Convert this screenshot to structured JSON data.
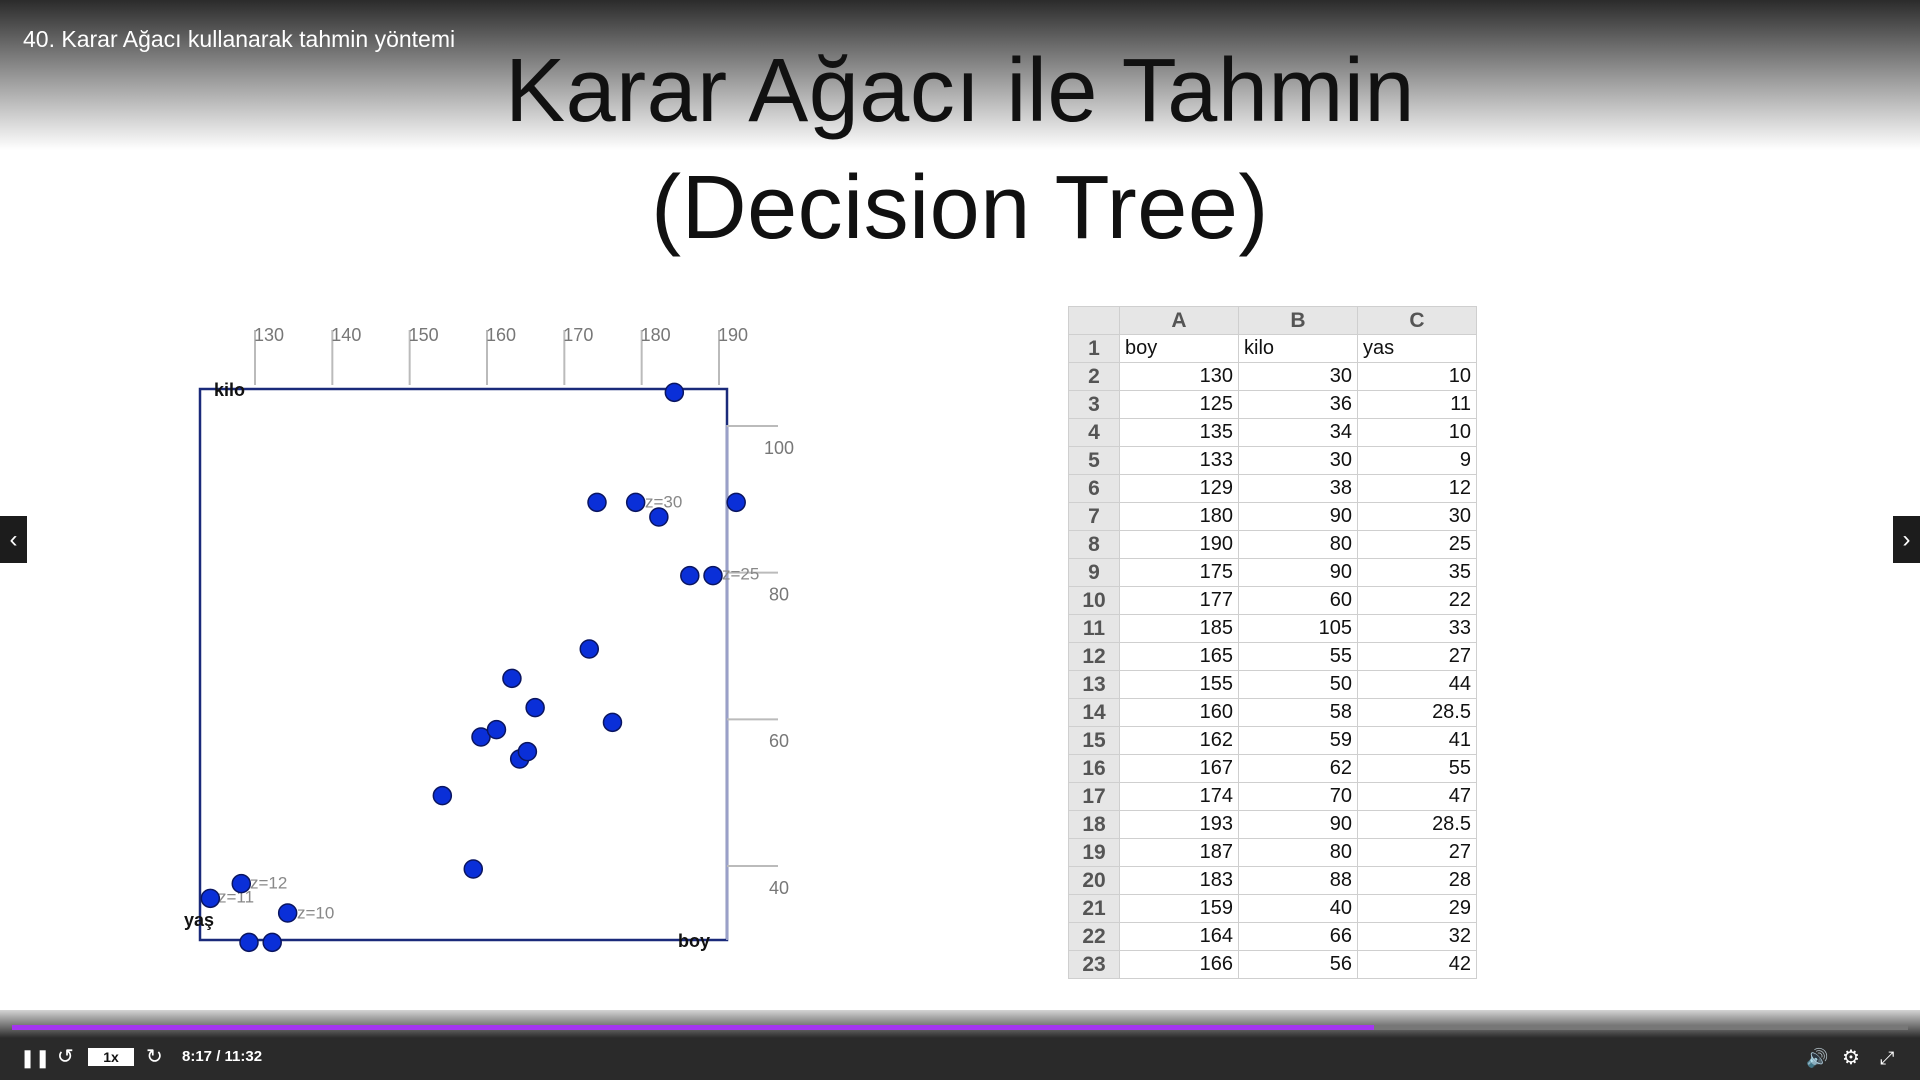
{
  "player": {
    "video_title": "40. Karar Ağacı kullanarak tahmin yöntemi",
    "speed": "1x",
    "time": "8:17 / 11:32"
  },
  "slide": {
    "title_lines": [
      "Karar Ağacı ile Tahmin",
      "(Decision Tree)"
    ]
  },
  "plot": {
    "x_label": "boy",
    "y_label": "kilo",
    "z_label": "yaş",
    "xticks": [
      130,
      140,
      150,
      160,
      170,
      180,
      190
    ],
    "yticks": [
      100,
      80,
      60,
      40
    ],
    "z_notes": [
      "z=30",
      "z=25",
      "z=12",
      "z=11",
      "z=10"
    ]
  },
  "table": {
    "columns": [
      "A",
      "B",
      "C"
    ],
    "row_numbers": [
      1,
      2,
      3,
      4,
      5,
      6,
      7,
      8,
      9,
      10,
      11,
      12,
      13,
      14,
      15,
      16,
      17,
      18,
      19,
      20,
      21,
      22,
      23
    ],
    "rows": [
      [
        "boy",
        "kilo",
        "yas"
      ],
      [
        130,
        30,
        10
      ],
      [
        125,
        36,
        11
      ],
      [
        135,
        34,
        10
      ],
      [
        133,
        30,
        9
      ],
      [
        129,
        38,
        12
      ],
      [
        180,
        90,
        30
      ],
      [
        190,
        80,
        25
      ],
      [
        175,
        90,
        35
      ],
      [
        177,
        60,
        22
      ],
      [
        185,
        105,
        33
      ],
      [
        165,
        55,
        27
      ],
      [
        155,
        50,
        44
      ],
      [
        160,
        58,
        28.5
      ],
      [
        162,
        59,
        41
      ],
      [
        167,
        62,
        55
      ],
      [
        174,
        70,
        47
      ],
      [
        193,
        90,
        28.5
      ],
      [
        187,
        80,
        27
      ],
      [
        183,
        88,
        28
      ],
      [
        159,
        40,
        29
      ],
      [
        164,
        66,
        32
      ],
      [
        166,
        56,
        42
      ]
    ]
  }
}
